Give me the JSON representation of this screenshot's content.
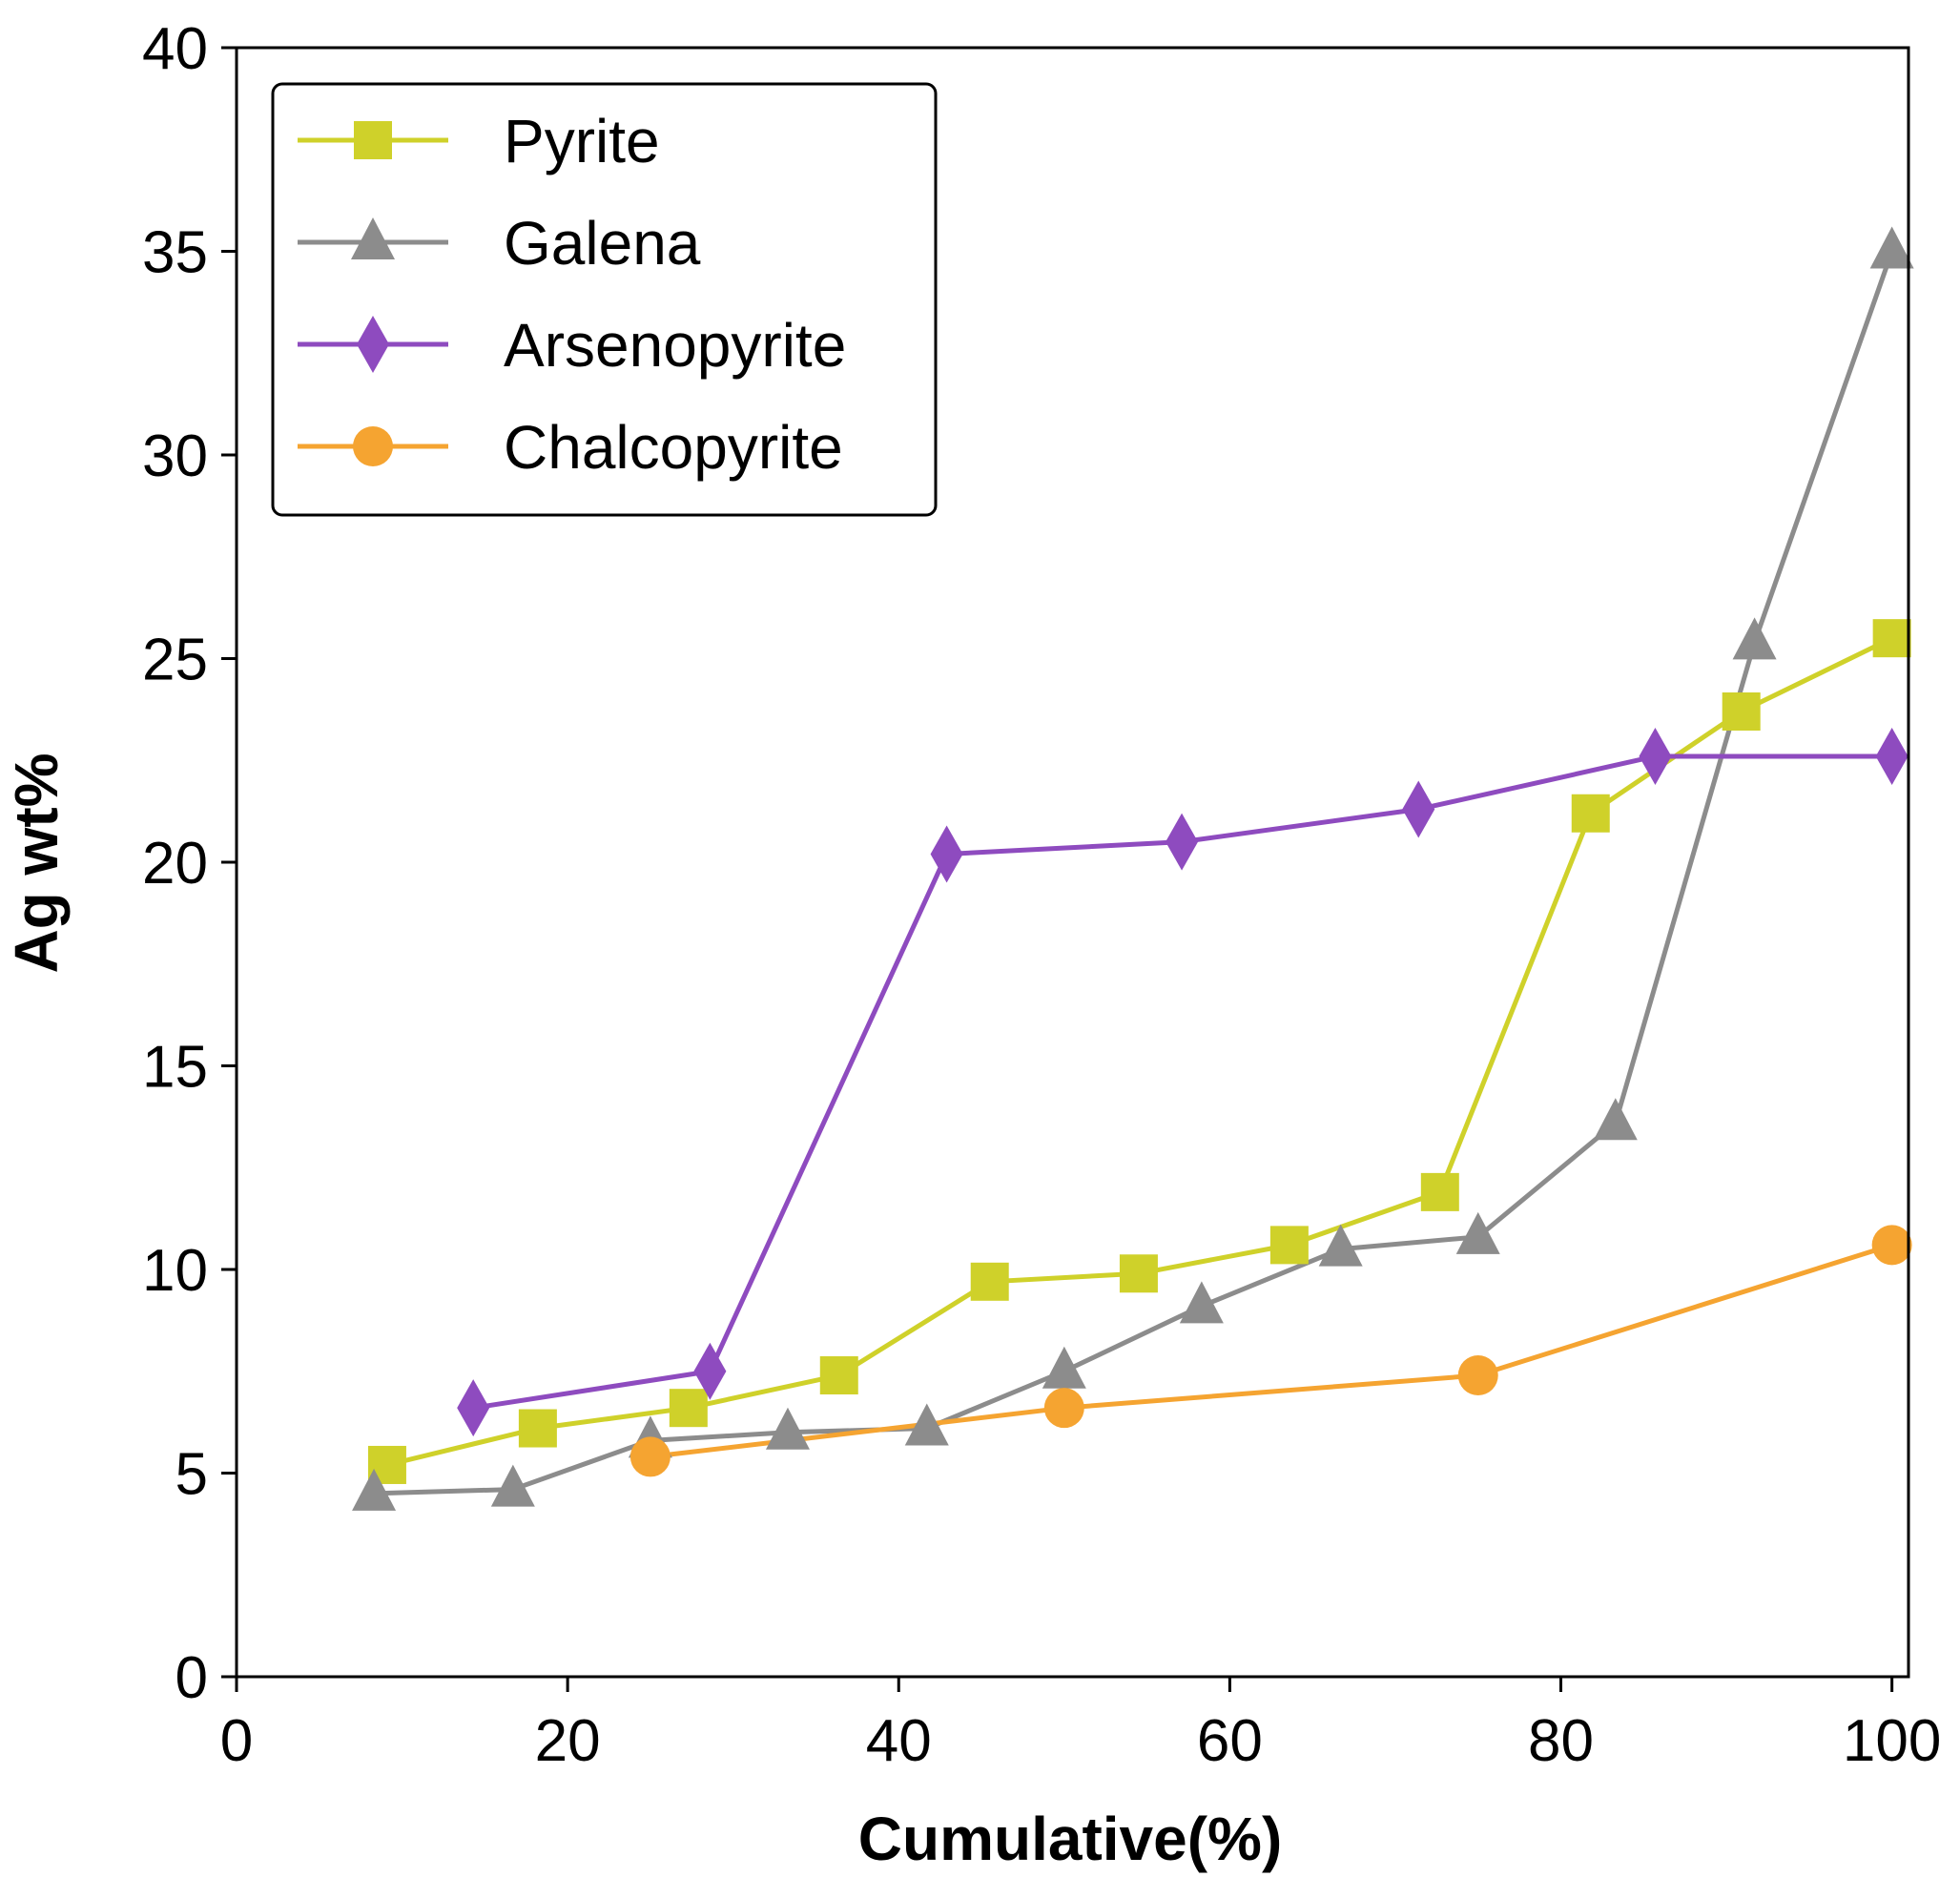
{
  "chart_data": {
    "type": "line",
    "title": "",
    "xlabel": "Cumulative(%)",
    "ylabel": "Ag wt%",
    "xlim": [
      0,
      101
    ],
    "ylim": [
      0,
      40
    ],
    "xticks": [
      0,
      20,
      40,
      60,
      80,
      100
    ],
    "yticks": [
      0,
      5,
      10,
      15,
      20,
      25,
      30,
      35,
      40
    ],
    "grid": false,
    "legend_position": "top-left",
    "series": [
      {
        "name": "Pyrite",
        "color": "#cfd12a",
        "marker": "square",
        "x": [
          9.1,
          18.2,
          27.3,
          36.4,
          45.5,
          54.5,
          63.6,
          72.7,
          81.8,
          90.9,
          100
        ],
        "y": [
          5.2,
          6.1,
          6.6,
          7.4,
          9.7,
          9.9,
          10.6,
          11.9,
          21.2,
          23.7,
          25.5
        ]
      },
      {
        "name": "Galena",
        "color": "#8c8c8c",
        "marker": "triangle",
        "x": [
          8.3,
          16.7,
          25.0,
          33.3,
          41.7,
          50.0,
          58.3,
          66.7,
          75.0,
          83.3,
          91.7,
          100
        ],
        "y": [
          4.5,
          4.6,
          5.8,
          6.0,
          6.1,
          7.5,
          9.1,
          10.5,
          10.8,
          13.6,
          25.4,
          35.0
        ]
      },
      {
        "name": "Arsenopyrite",
        "color": "#8e4bbf",
        "marker": "diamond",
        "x": [
          14.3,
          28.6,
          42.9,
          57.1,
          71.4,
          85.7,
          100
        ],
        "y": [
          6.6,
          7.5,
          20.2,
          20.5,
          21.3,
          22.6,
          22.6
        ]
      },
      {
        "name": "Chalcopyrite",
        "color": "#f5a431",
        "marker": "circle",
        "x": [
          25.0,
          50.0,
          75.0,
          100
        ],
        "y": [
          5.4,
          6.6,
          7.4,
          10.6
        ]
      }
    ]
  }
}
